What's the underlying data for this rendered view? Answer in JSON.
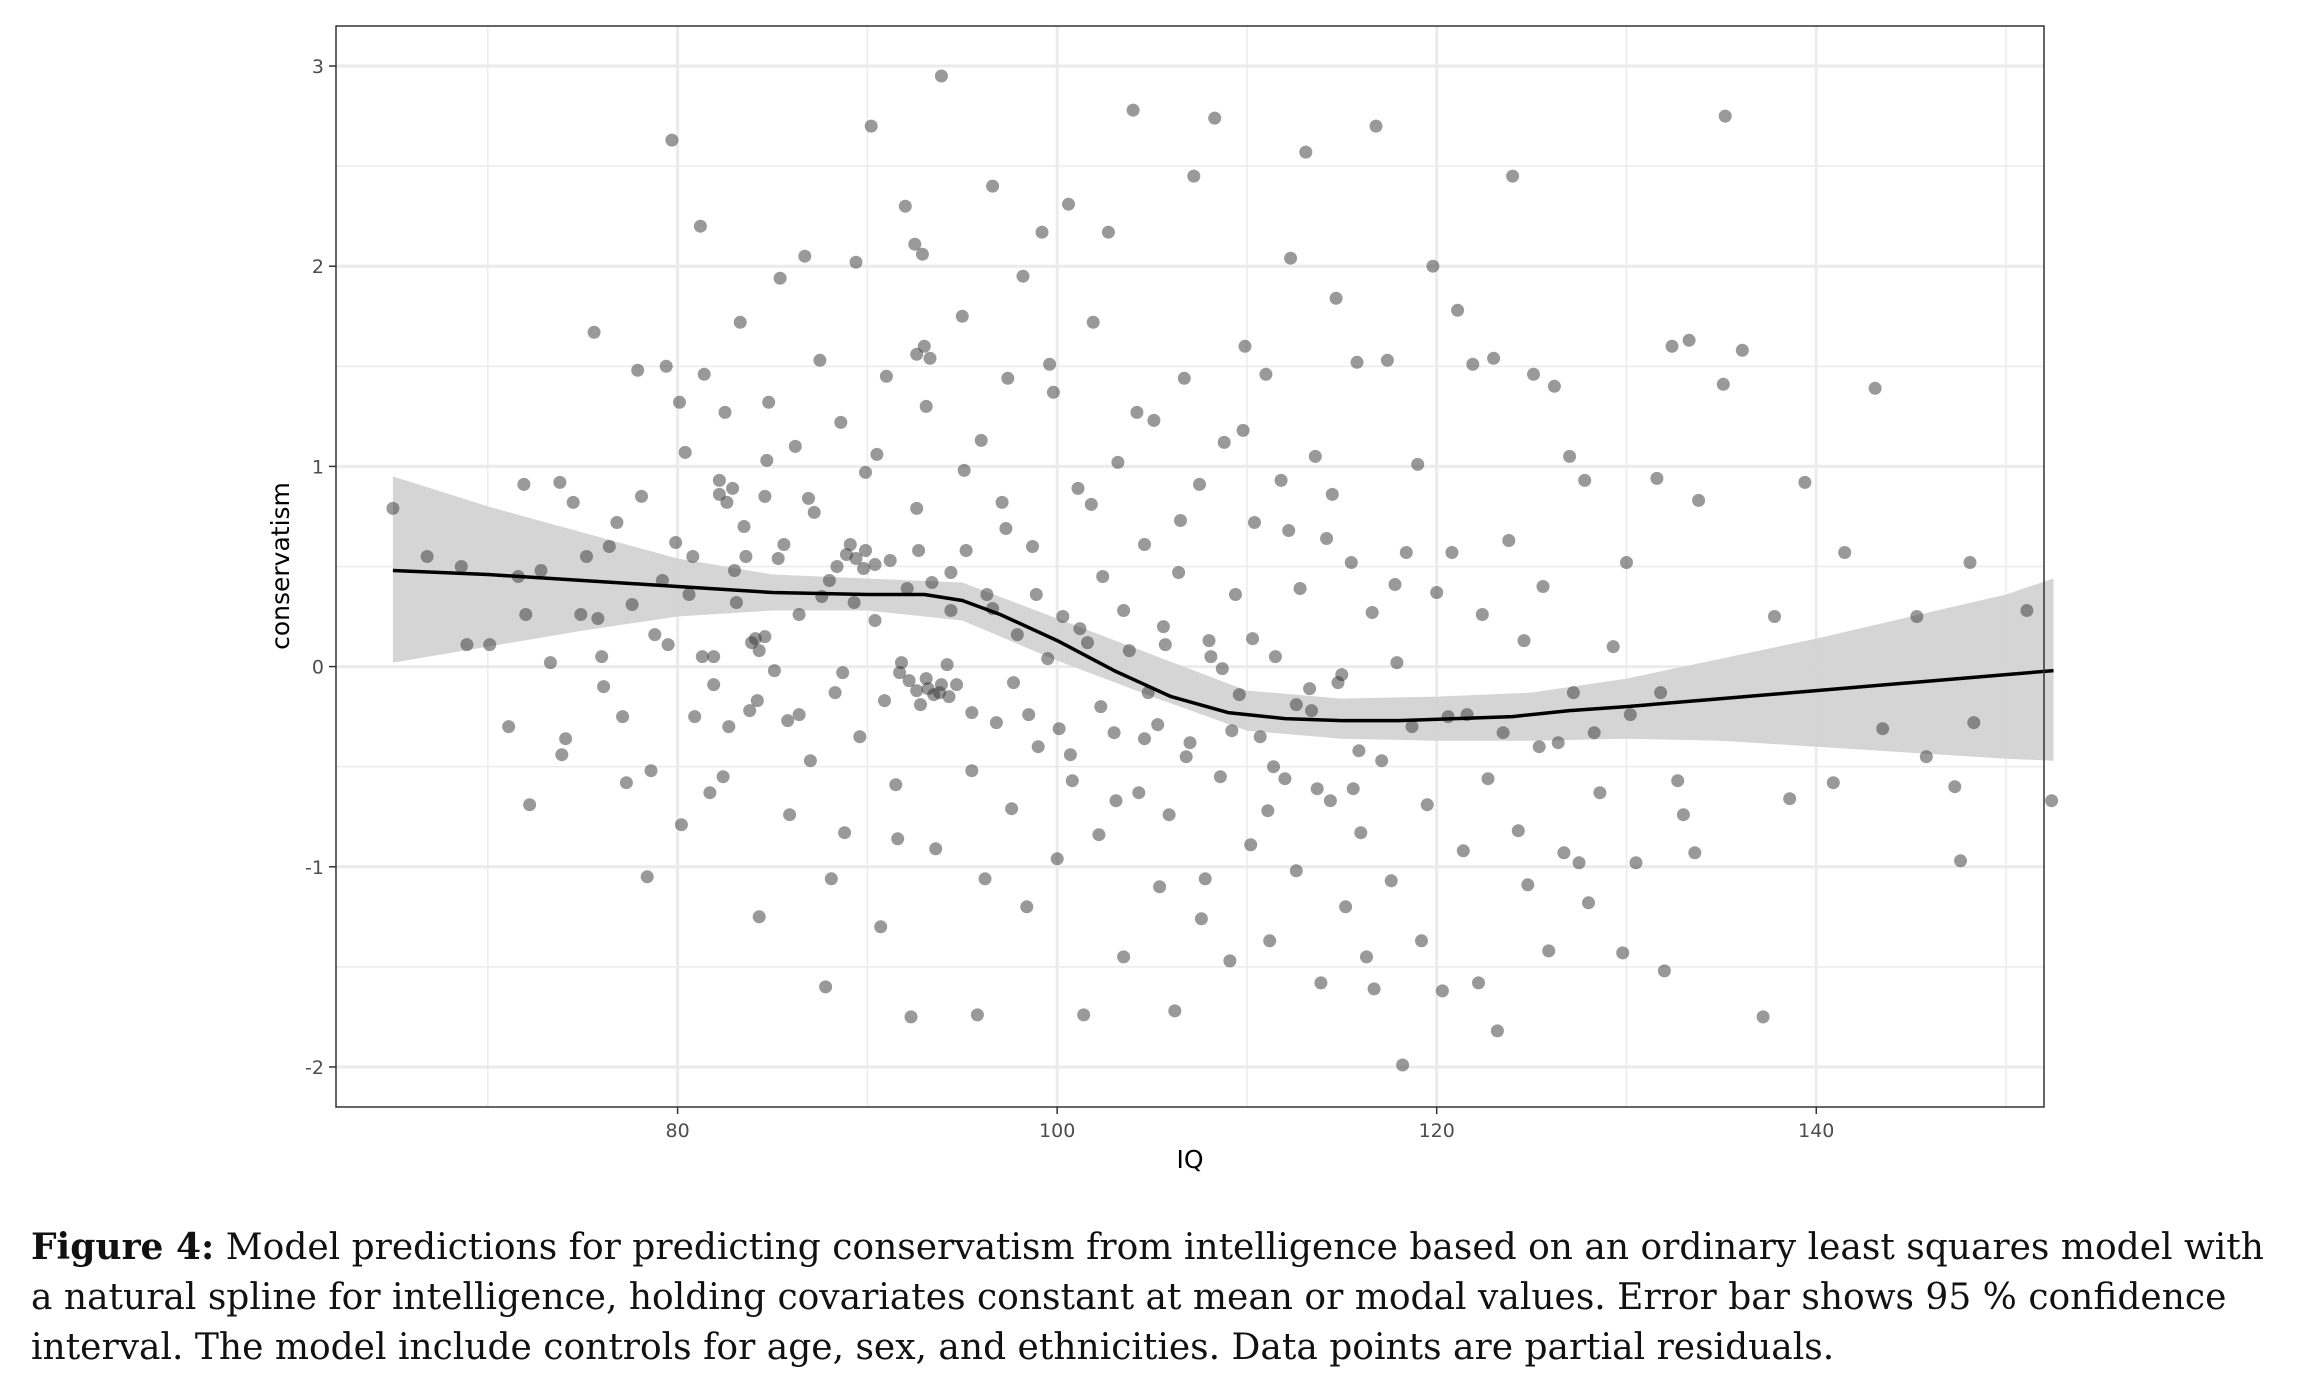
{
  "chart_data": {
    "type": "scatter",
    "xlabel": "IQ",
    "ylabel": "conservatism",
    "xlim": [
      62,
      152
    ],
    "ylim": [
      -2.2,
      3.2
    ],
    "x_ticks": [
      80,
      100,
      120,
      140
    ],
    "y_ticks": [
      -2,
      -1,
      0,
      1,
      2,
      3
    ],
    "grid": true,
    "legend": "none",
    "colors": {
      "points": "#333333",
      "fit": "#000000",
      "band": "#d3d3d3",
      "grid": "#ebebeb",
      "frame": "#333333"
    },
    "fit_line": {
      "x": [
        65,
        70,
        75,
        80,
        85,
        90,
        93,
        95,
        97,
        100,
        103,
        106,
        109,
        112,
        115,
        118,
        121,
        124,
        127,
        130,
        135,
        140,
        145,
        150,
        152.5
      ],
      "y": [
        0.48,
        0.46,
        0.43,
        0.4,
        0.37,
        0.36,
        0.36,
        0.33,
        0.26,
        0.13,
        -0.02,
        -0.15,
        -0.23,
        -0.26,
        -0.27,
        -0.27,
        -0.26,
        -0.25,
        -0.22,
        -0.2,
        -0.16,
        -0.12,
        -0.08,
        -0.04,
        -0.02
      ]
    },
    "confidence_band": {
      "x": [
        65,
        70,
        75,
        80,
        85,
        90,
        95,
        100,
        105,
        110,
        115,
        120,
        125,
        130,
        135,
        140,
        145,
        150,
        152.5
      ],
      "lower": [
        0.02,
        0.1,
        0.18,
        0.25,
        0.28,
        0.28,
        0.23,
        0.03,
        -0.15,
        -0.32,
        -0.36,
        -0.37,
        -0.37,
        -0.36,
        -0.37,
        -0.4,
        -0.43,
        -0.46,
        -0.47
      ],
      "upper": [
        0.95,
        0.8,
        0.67,
        0.54,
        0.46,
        0.44,
        0.42,
        0.24,
        0.06,
        -0.12,
        -0.16,
        -0.15,
        -0.13,
        -0.06,
        0.04,
        0.14,
        0.25,
        0.36,
        0.44
      ]
    },
    "points": [
      [
        65,
        0.79
      ],
      [
        66.8,
        0.55
      ],
      [
        68.6,
        0.5
      ],
      [
        68.9,
        0.11
      ],
      [
        70.1,
        0.11
      ],
      [
        71.1,
        -0.3
      ],
      [
        71.6,
        0.45
      ],
      [
        71.9,
        0.91
      ],
      [
        72,
        0.26
      ],
      [
        72.2,
        -0.69
      ],
      [
        72.8,
        0.48
      ],
      [
        73.3,
        0.02
      ],
      [
        73.8,
        0.92
      ],
      [
        73.9,
        -0.44
      ],
      [
        74.1,
        -0.36
      ],
      [
        74.5,
        0.82
      ],
      [
        74.9,
        0.26
      ],
      [
        75.2,
        0.55
      ],
      [
        75.6,
        1.67
      ],
      [
        75.8,
        0.24
      ],
      [
        76,
        0.05
      ],
      [
        76.1,
        -0.1
      ],
      [
        76.4,
        0.6
      ],
      [
        76.8,
        0.72
      ],
      [
        77.1,
        -0.25
      ],
      [
        77.3,
        -0.58
      ],
      [
        77.6,
        0.31
      ],
      [
        77.9,
        1.48
      ],
      [
        78.1,
        0.85
      ],
      [
        78.4,
        -1.05
      ],
      [
        78.6,
        -0.52
      ],
      [
        78.8,
        0.16
      ],
      [
        79.2,
        0.43
      ],
      [
        79.4,
        1.5
      ],
      [
        79.7,
        2.63
      ],
      [
        79.9,
        0.62
      ],
      [
        80.2,
        -0.79
      ],
      [
        80.4,
        1.07
      ],
      [
        80.6,
        0.36
      ],
      [
        80.9,
        -0.25
      ],
      [
        81.2,
        2.2
      ],
      [
        81.4,
        1.46
      ],
      [
        81.7,
        -0.63
      ],
      [
        81.9,
        0.05
      ],
      [
        82.2,
        0.93
      ],
      [
        82.5,
        1.27
      ],
      [
        82.7,
        -0.3
      ],
      [
        83,
        0.48
      ],
      [
        83.3,
        1.72
      ],
      [
        83.5,
        0.7
      ],
      [
        83.8,
        -0.22
      ],
      [
        84.1,
        0.14
      ],
      [
        84.3,
        -1.25
      ],
      [
        84.6,
        0.85
      ],
      [
        84.8,
        1.32
      ],
      [
        85.1,
        -0.02
      ],
      [
        85.4,
        1.94
      ],
      [
        85.6,
        0.61
      ],
      [
        85.9,
        -0.74
      ],
      [
        86.2,
        1.1
      ],
      [
        86.4,
        0.26
      ],
      [
        86.7,
        2.05
      ],
      [
        87,
        -0.47
      ],
      [
        87.2,
        0.77
      ],
      [
        87.5,
        1.53
      ],
      [
        87.8,
        -1.6
      ],
      [
        88,
        0.43
      ],
      [
        88.3,
        -0.13
      ],
      [
        88.6,
        1.22
      ],
      [
        88.8,
        -0.83
      ],
      [
        89.1,
        0.61
      ],
      [
        89.4,
        2.02
      ],
      [
        89.6,
        -0.35
      ],
      [
        89.9,
        0.97
      ],
      [
        90.2,
        2.7
      ],
      [
        90.4,
        0.23
      ],
      [
        90.7,
        -1.3
      ],
      [
        91,
        1.45
      ],
      [
        91.2,
        0.53
      ],
      [
        91.5,
        -0.59
      ],
      [
        91.8,
        0.02
      ],
      [
        92,
        2.3
      ],
      [
        92.3,
        -1.75
      ],
      [
        92.6,
        0.79
      ],
      [
        92.8,
        -0.19
      ],
      [
        93.1,
        1.3
      ],
      [
        93.4,
        0.42
      ],
      [
        93.6,
        -0.91
      ],
      [
        93.9,
        2.95
      ],
      [
        94.2,
        0.01
      ],
      [
        94.4,
        0.28
      ],
      [
        94.7,
        -0.09
      ],
      [
        95,
        1.75
      ],
      [
        95.2,
        0.58
      ],
      [
        95.5,
        -0.52
      ],
      [
        95.8,
        -1.74
      ],
      [
        96,
        1.13
      ],
      [
        96.3,
        0.36
      ],
      [
        96.6,
        2.4
      ],
      [
        96.8,
        -0.28
      ],
      [
        97.1,
        0.82
      ],
      [
        97.4,
        1.44
      ],
      [
        97.6,
        -0.71
      ],
      [
        97.9,
        0.16
      ],
      [
        98.2,
        1.95
      ],
      [
        98.4,
        -1.2
      ],
      [
        98.7,
        0.6
      ],
      [
        99,
        -0.4
      ],
      [
        99.2,
        2.17
      ],
      [
        99.5,
        0.04
      ],
      [
        99.8,
        1.37
      ],
      [
        100,
        -0.96
      ],
      [
        100.3,
        0.25
      ],
      [
        100.6,
        2.31
      ],
      [
        100.8,
        -0.57
      ],
      [
        101.1,
        0.89
      ],
      [
        101.4,
        -1.74
      ],
      [
        101.6,
        0.12
      ],
      [
        101.9,
        1.72
      ],
      [
        102.2,
        -0.84
      ],
      [
        102.4,
        0.45
      ],
      [
        102.7,
        2.17
      ],
      [
        103,
        -0.33
      ],
      [
        103.2,
        1.02
      ],
      [
        103.5,
        -1.45
      ],
      [
        103.8,
        0.08
      ],
      [
        104,
        2.78
      ],
      [
        104.3,
        -0.63
      ],
      [
        104.6,
        0.61
      ],
      [
        104.8,
        -0.13
      ],
      [
        105.1,
        1.23
      ],
      [
        105.4,
        -1.1
      ],
      [
        105.6,
        0.2
      ],
      [
        105.9,
        -0.74
      ],
      [
        106.2,
        -1.72
      ],
      [
        106.4,
        0.47
      ],
      [
        106.7,
        1.44
      ],
      [
        107,
        -0.38
      ],
      [
        107.2,
        2.45
      ],
      [
        107.5,
        0.91
      ],
      [
        107.8,
        -1.06
      ],
      [
        108,
        0.13
      ],
      [
        108.3,
        2.74
      ],
      [
        108.6,
        -0.55
      ],
      [
        108.8,
        1.12
      ],
      [
        109.1,
        -1.47
      ],
      [
        109.4,
        0.36
      ],
      [
        109.6,
        -0.14
      ],
      [
        109.9,
        1.6
      ],
      [
        110.2,
        -0.89
      ],
      [
        110.4,
        0.72
      ],
      [
        110.7,
        -0.35
      ],
      [
        111,
        1.46
      ],
      [
        111.2,
        -1.37
      ],
      [
        111.5,
        0.05
      ],
      [
        111.8,
        0.93
      ],
      [
        112,
        -0.56
      ],
      [
        112.3,
        2.04
      ],
      [
        112.6,
        -1.02
      ],
      [
        112.8,
        0.39
      ],
      [
        113.1,
        2.57
      ],
      [
        113.4,
        -0.22
      ],
      [
        113.6,
        1.05
      ],
      [
        113.9,
        -1.58
      ],
      [
        114.2,
        0.64
      ],
      [
        114.4,
        -0.67
      ],
      [
        114.7,
        1.84
      ],
      [
        115,
        -0.04
      ],
      [
        115.2,
        -1.2
      ],
      [
        115.5,
        0.52
      ],
      [
        115.8,
        1.52
      ],
      [
        116,
        -0.83
      ],
      [
        116.3,
        -1.45
      ],
      [
        116.6,
        0.27
      ],
      [
        116.8,
        2.7
      ],
      [
        117.1,
        -0.47
      ],
      [
        117.4,
        1.53
      ],
      [
        117.6,
        -1.07
      ],
      [
        117.9,
        0.02
      ],
      [
        118.2,
        -1.99
      ],
      [
        118.4,
        0.57
      ],
      [
        118.7,
        -0.3
      ],
      [
        119,
        1.01
      ],
      [
        119.2,
        -1.37
      ],
      [
        119.5,
        -0.69
      ],
      [
        119.8,
        2.0
      ],
      [
        120,
        0.37
      ],
      [
        120.3,
        -1.62
      ],
      [
        120.6,
        -0.25
      ],
      [
        120.8,
        0.57
      ],
      [
        121.1,
        1.78
      ],
      [
        121.4,
        -0.92
      ],
      [
        121.6,
        -0.24
      ],
      [
        121.9,
        1.51
      ],
      [
        122.2,
        -1.58
      ],
      [
        122.4,
        0.26
      ],
      [
        122.7,
        -0.56
      ],
      [
        123,
        1.54
      ],
      [
        123.2,
        -1.82
      ],
      [
        123.5,
        -0.33
      ],
      [
        123.8,
        0.63
      ],
      [
        124,
        2.45
      ],
      [
        124.3,
        -0.82
      ],
      [
        124.6,
        0.13
      ],
      [
        124.8,
        -1.09
      ],
      [
        125.1,
        1.46
      ],
      [
        125.4,
        -0.4
      ],
      [
        125.6,
        0.4
      ],
      [
        125.9,
        -1.42
      ],
      [
        126.2,
        1.4
      ],
      [
        126.4,
        -0.38
      ],
      [
        126.7,
        -0.93
      ],
      [
        127,
        1.05
      ],
      [
        127.2,
        -0.13
      ],
      [
        127.5,
        -0.98
      ],
      [
        127.8,
        0.93
      ],
      [
        128,
        -1.18
      ],
      [
        128.3,
        -0.33
      ],
      [
        128.6,
        -0.63
      ],
      [
        129.3,
        0.1
      ],
      [
        129.8,
        -1.43
      ],
      [
        130,
        0.52
      ],
      [
        130.2,
        -0.24
      ],
      [
        130.5,
        -0.98
      ],
      [
        131.6,
        0.94
      ],
      [
        131.8,
        -0.13
      ],
      [
        132,
        -1.52
      ],
      [
        132.4,
        1.6
      ],
      [
        132.7,
        -0.57
      ],
      [
        133,
        -0.74
      ],
      [
        133.3,
        1.63
      ],
      [
        133.6,
        -0.93
      ],
      [
        133.8,
        0.83
      ],
      [
        135.1,
        1.41
      ],
      [
        135.2,
        2.75
      ],
      [
        136.1,
        1.58
      ],
      [
        137.2,
        -1.75
      ],
      [
        137.8,
        0.25
      ],
      [
        138.6,
        -0.66
      ],
      [
        139.4,
        0.92
      ],
      [
        140.9,
        -0.58
      ],
      [
        141.5,
        0.57
      ],
      [
        143.1,
        1.39
      ],
      [
        143.5,
        -0.31
      ],
      [
        145.3,
        0.25
      ],
      [
        145.8,
        -0.45
      ],
      [
        147.3,
        -0.6
      ],
      [
        147.6,
        -0.97
      ],
      [
        148.1,
        0.52
      ],
      [
        148.3,
        -0.28
      ],
      [
        151.1,
        0.28
      ],
      [
        152.4,
        -0.67
      ],
      [
        80.1,
        1.32
      ],
      [
        81.3,
        0.05
      ],
      [
        82.4,
        -0.55
      ],
      [
        83.6,
        0.55
      ],
      [
        84.7,
        1.03
      ],
      [
        85.8,
        -0.27
      ],
      [
        86.9,
        0.84
      ],
      [
        88.1,
        -1.06
      ],
      [
        89.3,
        0.32
      ],
      [
        90.5,
        1.06
      ],
      [
        91.6,
        -0.86
      ],
      [
        92.7,
        0.58
      ],
      [
        93.8,
        -0.13
      ],
      [
        95.1,
        0.98
      ],
      [
        96.2,
        -1.06
      ],
      [
        97.3,
        0.69
      ],
      [
        98.5,
        -0.24
      ],
      [
        99.6,
        1.51
      ],
      [
        100.7,
        -0.44
      ],
      [
        101.8,
        0.81
      ],
      [
        103.1,
        -0.67
      ],
      [
        104.2,
        1.27
      ],
      [
        105.3,
        -0.29
      ],
      [
        106.5,
        0.73
      ],
      [
        107.6,
        -1.26
      ],
      [
        108.7,
        -0.01
      ],
      [
        109.8,
        1.18
      ],
      [
        111.1,
        -0.72
      ],
      [
        112.2,
        0.68
      ],
      [
        113.3,
        -0.11
      ],
      [
        114.5,
        0.86
      ],
      [
        115.6,
        -0.61
      ],
      [
        116.7,
        -1.61
      ],
      [
        117.8,
        0.41
      ],
      [
        79.5,
        0.11
      ],
      [
        80.8,
        0.55
      ],
      [
        81.9,
        -0.09
      ],
      [
        83.1,
        0.32
      ],
      [
        84.2,
        -0.17
      ],
      [
        85.3,
        0.54
      ],
      [
        86.4,
        -0.24
      ],
      [
        87.6,
        0.35
      ],
      [
        88.7,
        -0.03
      ],
      [
        89.8,
        0.49
      ],
      [
        90.9,
        -0.17
      ],
      [
        92.1,
        0.39
      ],
      [
        93.2,
        -0.11
      ],
      [
        94.4,
        0.47
      ],
      [
        95.5,
        -0.23
      ],
      [
        96.6,
        0.29
      ],
      [
        97.7,
        -0.08
      ],
      [
        98.9,
        0.36
      ],
      [
        100.1,
        -0.31
      ],
      [
        101.2,
        0.19
      ],
      [
        102.3,
        -0.2
      ],
      [
        103.5,
        0.28
      ],
      [
        104.6,
        -0.36
      ],
      [
        105.7,
        0.11
      ],
      [
        106.8,
        -0.45
      ],
      [
        108.1,
        0.05
      ],
      [
        109.2,
        -0.32
      ],
      [
        110.3,
        0.14
      ],
      [
        111.4,
        -0.5
      ],
      [
        112.6,
        -0.19
      ],
      [
        113.7,
        -0.61
      ],
      [
        114.8,
        -0.08
      ],
      [
        115.9,
        -0.42
      ],
      [
        91.7,
        -0.03
      ],
      [
        92.2,
        -0.07
      ],
      [
        92.6,
        -0.12
      ],
      [
        93.1,
        -0.06
      ],
      [
        93.5,
        -0.14
      ],
      [
        93.9,
        -0.09
      ],
      [
        94.3,
        -0.15
      ],
      [
        88.4,
        0.5
      ],
      [
        88.9,
        0.56
      ],
      [
        89.4,
        0.54
      ],
      [
        89.9,
        0.58
      ],
      [
        90.4,
        0.51
      ],
      [
        83.9,
        0.12
      ],
      [
        84.3,
        0.08
      ],
      [
        84.6,
        0.15
      ],
      [
        82.2,
        0.86
      ],
      [
        82.6,
        0.82
      ],
      [
        82.9,
        0.89
      ],
      [
        92.6,
        1.56
      ],
      [
        93.0,
        1.6
      ],
      [
        93.3,
        1.54
      ],
      [
        92.5,
        2.11
      ],
      [
        92.9,
        2.06
      ]
    ]
  },
  "caption": {
    "label": "Figure 4:",
    "text": "Model predictions for predicting conservatism from intelligence based on an ordinary least squares model with a natural spline for intelligence, holding covariates constant at mean or modal values. Error bar shows 95 % confidence interval. The model include controls for age, sex, and ethnicities. Data points are partial residuals."
  }
}
